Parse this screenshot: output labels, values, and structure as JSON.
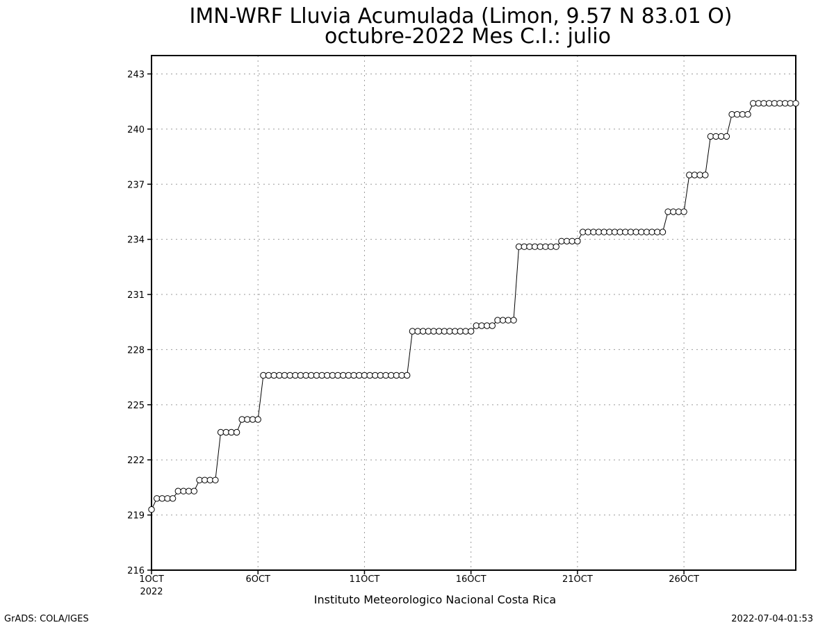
{
  "title_line1": "IMN-WRF  Lluvia Acumulada  (Limon, 9.57  N 83.01  O)",
  "title_line2": "octubre-2022 Mes C.I.: julio",
  "footer_left": "GrADS: COLA/IGES",
  "footer_right": "2022-07-04-01:53",
  "chart_data": {
    "type": "line",
    "title": "IMN-WRF  Lluvia Acumulada  (Limon, 9.57  N 83.01  O)",
    "subtitle": "octubre-2022 Mes C.I.: julio",
    "xlabel": "Instituto Meteorologico Nacional Costa Rica",
    "ylabel": "",
    "x_unit": "days from 1 October 2022 (6-hourly steps)",
    "xlim": [
      1,
      31.25
    ],
    "ylim": [
      216,
      244
    ],
    "yticks": [
      216,
      219,
      222,
      225,
      228,
      231,
      234,
      237,
      240,
      243
    ],
    "xticks": [
      {
        "x": 1,
        "label": "1OCT",
        "sublabel": "2022"
      },
      {
        "x": 6,
        "label": "6OCT"
      },
      {
        "x": 11,
        "label": "11OCT"
      },
      {
        "x": 16,
        "label": "16OCT"
      },
      {
        "x": 21,
        "label": "21OCT"
      },
      {
        "x": 26,
        "label": "26OCT"
      }
    ],
    "grid": true,
    "marker": "open-circle",
    "series": [
      {
        "x0": 1,
        "dx": 0.25,
        "values": [
          219.3,
          219.9,
          219.9,
          219.9,
          219.9,
          220.3,
          220.3,
          220.3,
          220.3,
          220.9,
          220.9,
          220.9,
          220.9,
          223.5,
          223.5,
          223.5,
          223.5,
          224.2,
          224.2,
          224.2,
          224.2,
          226.6,
          226.6,
          226.6,
          226.6,
          226.6,
          226.6,
          226.6,
          226.6,
          226.6,
          226.6,
          226.6,
          226.6,
          226.6,
          226.6,
          226.6,
          226.6,
          226.6,
          226.6,
          226.6,
          226.6,
          226.6,
          226.6,
          226.6,
          226.6,
          226.6,
          226.6,
          226.6,
          226.6,
          229.0,
          229.0,
          229.0,
          229.0,
          229.0,
          229.0,
          229.0,
          229.0,
          229.0,
          229.0,
          229.0,
          229.0,
          229.3,
          229.3,
          229.3,
          229.3,
          229.6,
          229.6,
          229.6,
          229.6,
          233.6,
          233.6,
          233.6,
          233.6,
          233.6,
          233.6,
          233.6,
          233.6,
          233.9,
          233.9,
          233.9,
          233.9,
          234.4,
          234.4,
          234.4,
          234.4,
          234.4,
          234.4,
          234.4,
          234.4,
          234.4,
          234.4,
          234.4,
          234.4,
          234.4,
          234.4,
          234.4,
          234.4,
          235.5,
          235.5,
          235.5,
          235.5,
          237.5,
          237.5,
          237.5,
          237.5,
          239.6,
          239.6,
          239.6,
          239.6,
          240.8,
          240.8,
          240.8,
          240.8,
          241.4,
          241.4,
          241.4,
          241.4,
          241.4,
          241.4,
          241.4,
          241.4,
          241.4
        ]
      }
    ]
  }
}
